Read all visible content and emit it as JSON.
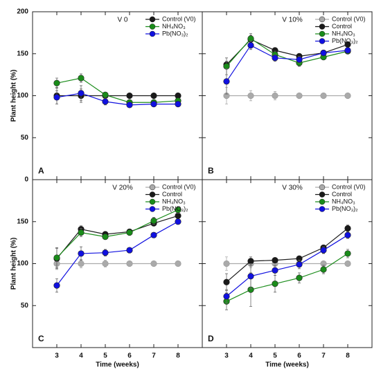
{
  "chart_data": [
    {
      "type": "line",
      "title": "V 0",
      "letter": "A",
      "y_label": "Plant height (%)",
      "x": [
        3,
        4,
        5,
        6,
        7,
        8
      ],
      "xlim": [
        2,
        9
      ],
      "ylim": [
        0,
        200
      ],
      "yticks": [
        0,
        50,
        100,
        150,
        200
      ],
      "series": [
        {
          "name": "Control (V0)",
          "color": "#1a1a1a",
          "values": [
            100,
            100,
            100,
            100,
            100,
            100
          ],
          "errors": [
            10,
            8,
            2,
            2,
            2,
            2
          ]
        },
        {
          "name": "NH₄NO₃",
          "color": "#1a8c1a",
          "values": [
            115,
            121,
            101,
            92,
            92,
            94
          ],
          "errors": [
            6,
            5,
            3,
            3,
            3,
            3
          ]
        },
        {
          "name": "Pb(NO₃)₂",
          "color": "#1010e0",
          "values": [
            98,
            103,
            93,
            89,
            90,
            90
          ],
          "errors": [
            8,
            9,
            4,
            3,
            3,
            3
          ]
        }
      ]
    },
    {
      "type": "line",
      "title": "V 10%",
      "letter": "B",
      "x": [
        3,
        4,
        5,
        6,
        7,
        8
      ],
      "xlim": [
        2,
        9
      ],
      "ylim": [
        0,
        200
      ],
      "series": [
        {
          "name": "Control (V0)",
          "color": "#aaaaaa",
          "values": [
            100,
            100,
            100,
            100,
            100,
            100
          ],
          "errors": [
            10,
            6,
            5,
            2,
            2,
            2
          ]
        },
        {
          "name": "Control",
          "color": "#1a1a1a",
          "values": [
            137,
            167,
            154,
            147,
            151,
            161
          ],
          "errors": [
            4,
            5,
            3,
            3,
            3,
            3
          ]
        },
        {
          "name": "NH₄NO₃",
          "color": "#1a8c1a",
          "values": [
            135,
            168,
            149,
            139,
            146,
            153
          ],
          "errors": [
            10,
            6,
            4,
            4,
            3,
            3
          ]
        },
        {
          "name": "Pb(NO₃)₂",
          "color": "#1010e0",
          "values": [
            117,
            160,
            145,
            143,
            151,
            154
          ],
          "errors": [
            15,
            5,
            4,
            4,
            3,
            3
          ]
        }
      ]
    },
    {
      "type": "line",
      "title": "V 20%",
      "letter": "C",
      "y_label": "Plant height (%)",
      "x_label": "Time (weeks)",
      "x": [
        3,
        4,
        5,
        6,
        7,
        8
      ],
      "xlim": [
        2,
        9
      ],
      "xticks": [
        3,
        4,
        5,
        6,
        7,
        8
      ],
      "ylim": [
        0,
        200
      ],
      "yticks": [
        50,
        100,
        150
      ],
      "series": [
        {
          "name": "Control (V0)",
          "color": "#aaaaaa",
          "values": [
            100,
            100,
            100,
            100,
            100,
            100
          ],
          "errors": [
            7,
            5,
            4,
            2,
            2,
            2
          ]
        },
        {
          "name": "Control",
          "color": "#1a1a1a",
          "values": [
            106,
            141,
            135,
            138,
            148,
            157
          ],
          "errors": [
            12,
            4,
            3,
            3,
            3,
            3
          ]
        },
        {
          "name": "NH₄NO₃",
          "color": "#1a8c1a",
          "values": [
            107,
            137,
            132,
            137,
            151,
            164
          ],
          "errors": [
            12,
            5,
            3,
            3,
            4,
            4
          ]
        },
        {
          "name": "Pb(NO₃)₂",
          "color": "#1010e0",
          "values": [
            74,
            112,
            113,
            116,
            134,
            150
          ],
          "errors": [
            8,
            8,
            4,
            3,
            3,
            3
          ]
        }
      ]
    },
    {
      "type": "line",
      "title": "V 30%",
      "letter": "D",
      "x_label": "Time (weeks)",
      "x": [
        3,
        4,
        5,
        6,
        7,
        8
      ],
      "xlim": [
        2,
        9
      ],
      "xticks": [
        3,
        4,
        5,
        6,
        7,
        8
      ],
      "ylim": [
        0,
        200
      ],
      "series": [
        {
          "name": "Control (V0)",
          "color": "#aaaaaa",
          "values": [
            100,
            100,
            100,
            100,
            100,
            100
          ],
          "errors": [
            8,
            5,
            3,
            2,
            2,
            2
          ]
        },
        {
          "name": "Control",
          "color": "#1a1a1a",
          "values": [
            78,
            103,
            104,
            106,
            119,
            142
          ],
          "errors": [
            10,
            5,
            3,
            3,
            3,
            4
          ]
        },
        {
          "name": "NH₄NO₃",
          "color": "#1a8c1a",
          "values": [
            55,
            69,
            76,
            83,
            93,
            112
          ],
          "errors": [
            10,
            20,
            10,
            6,
            5,
            5
          ]
        },
        {
          "name": "Pb(NO₃)₂",
          "color": "#1010e0",
          "values": [
            61,
            85,
            92,
            99,
            116,
            134
          ],
          "errors": [
            8,
            15,
            6,
            5,
            4,
            4
          ]
        }
      ]
    }
  ]
}
